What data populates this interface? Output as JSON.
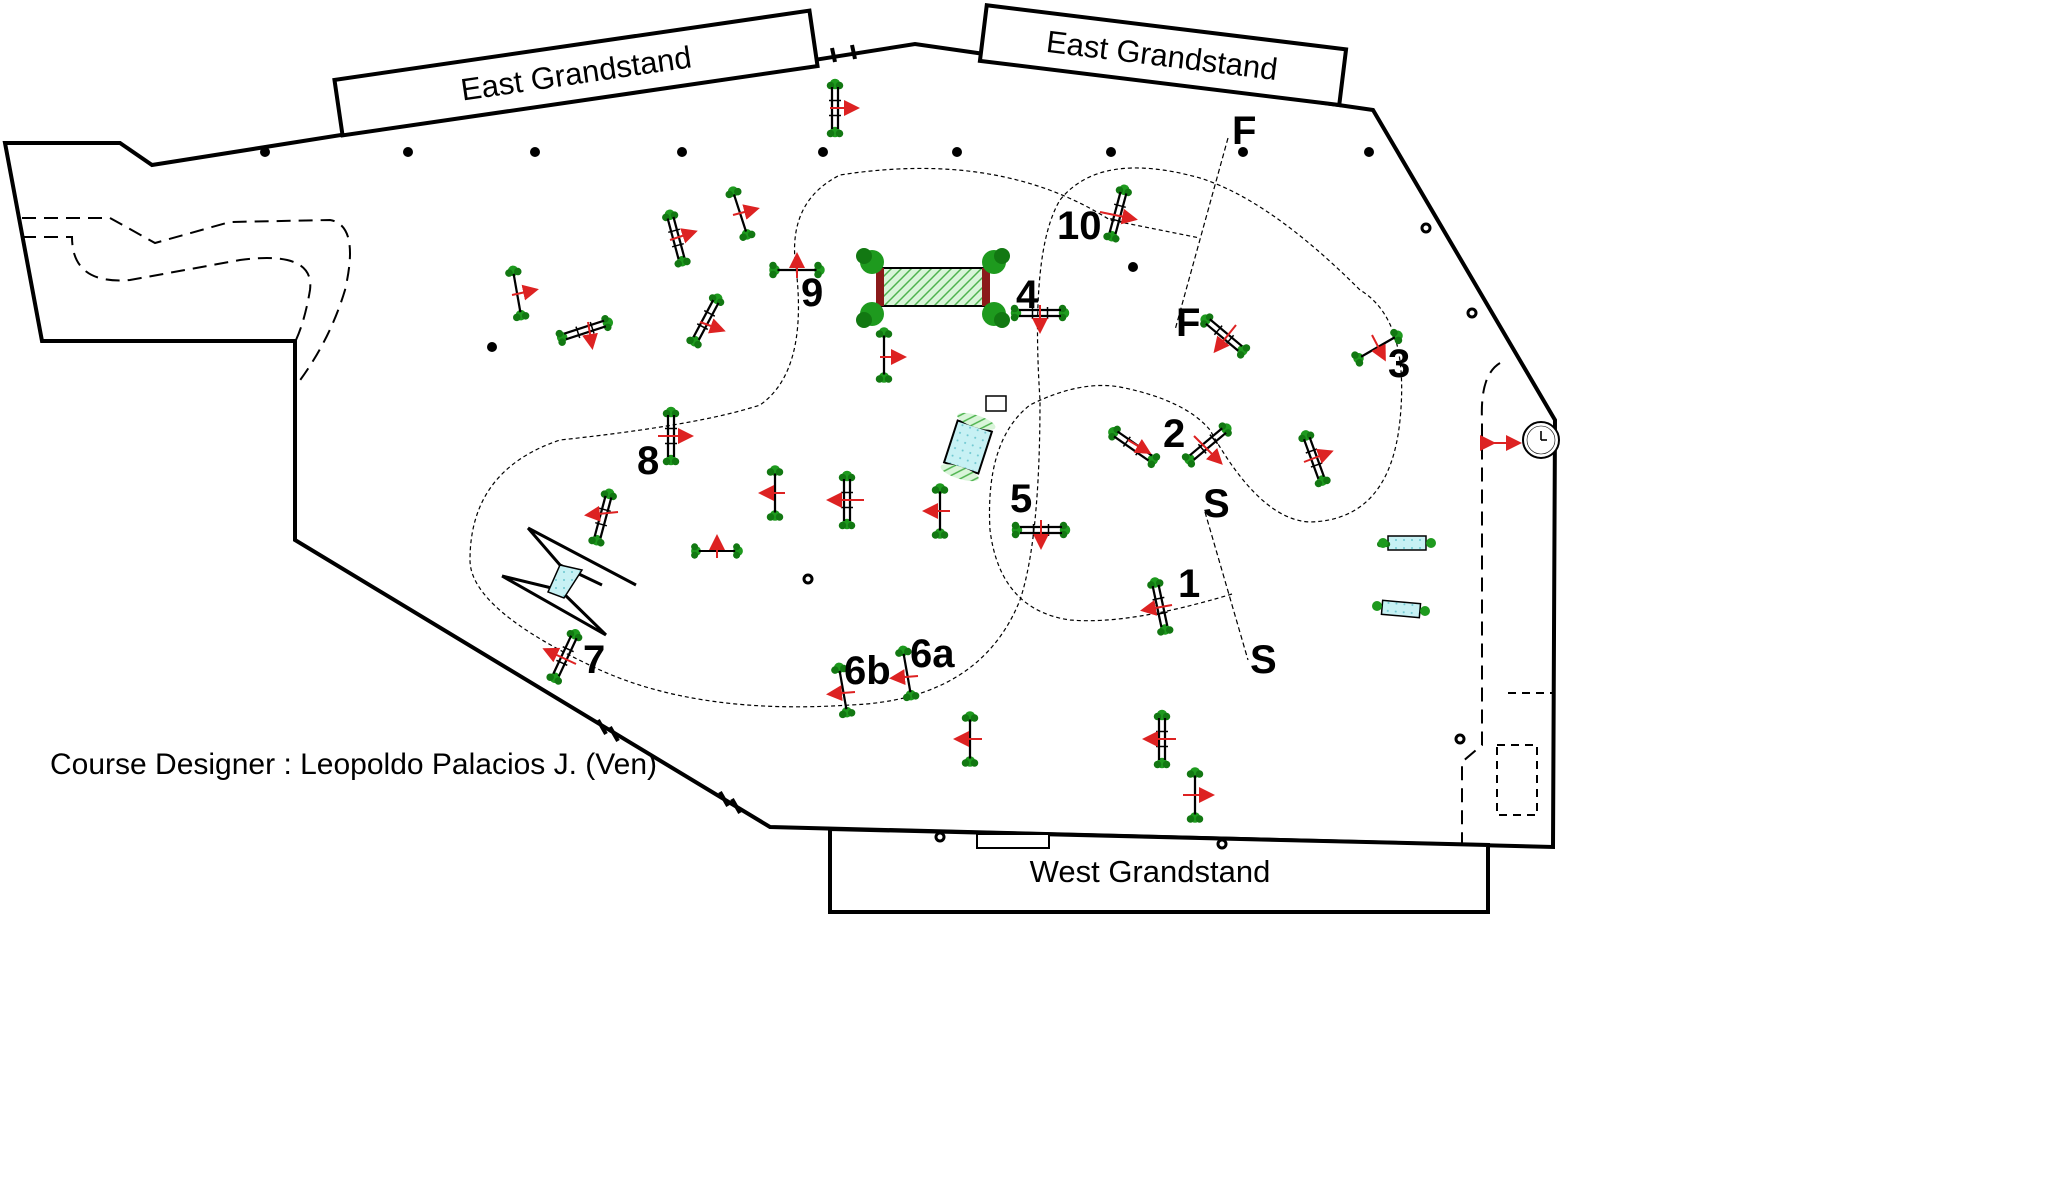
{
  "grandstands": {
    "north_west": "East Grandstand",
    "north_east": "East Grandstand",
    "south": "West Grandstand"
  },
  "designer": "Course Designer : Leopoldo Palacios J. (Ven)",
  "markers": {
    "start": "S",
    "finish": "F"
  },
  "obstacles": [
    "1",
    "2",
    "3",
    "4",
    "5",
    "6a",
    "6b",
    "7",
    "8",
    "9",
    "10"
  ],
  "colors": {
    "line": "#000000",
    "tree": "#1a8a1a",
    "direction_arrow": "#dd2222",
    "water": "#bfeff2",
    "hedge": "#98dc98",
    "brick": "#8b1a1a"
  },
  "icons": [
    "clock-icon",
    "direction-arrow-icon",
    "tree-icon"
  ]
}
